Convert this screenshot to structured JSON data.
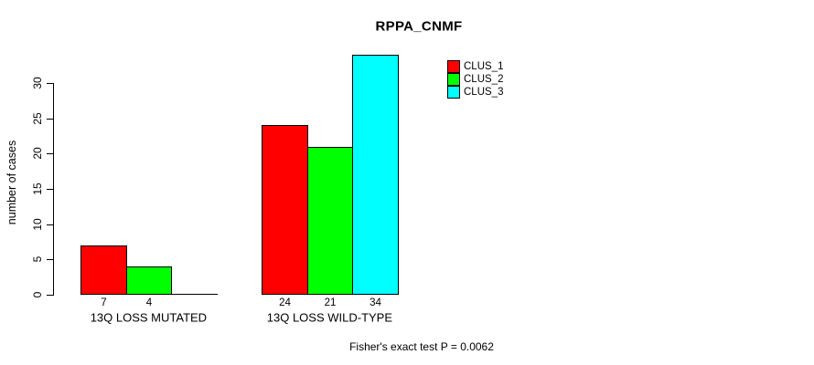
{
  "title": "RPPA_CNMF",
  "colors": {
    "background": "#ffffff",
    "axis": "#000000",
    "text": "#000000",
    "clus_1": "#ff0000",
    "clus_2": "#00ff00",
    "clus_3": "#00ffff"
  },
  "chart_data": {
    "type": "bar",
    "title": "RPPA_CNMF",
    "xlabel": "",
    "ylabel": "number of cases",
    "categories": [
      "13Q LOSS MUTATED",
      "13Q LOSS WILD-TYPE"
    ],
    "series": [
      {
        "name": "CLUS_1",
        "color": "#ff0000",
        "values": [
          7,
          24
        ]
      },
      {
        "name": "CLUS_2",
        "color": "#00ff00",
        "values": [
          4,
          21
        ]
      },
      {
        "name": "CLUS_3",
        "color": "#00ffff",
        "values": [
          0,
          34
        ]
      }
    ],
    "bar_value_labels": [
      [
        "7",
        "4",
        ""
      ],
      [
        "24",
        "21",
        "34"
      ]
    ],
    "yticks": [
      0,
      5,
      10,
      15,
      20,
      25,
      30
    ],
    "ylim": [
      0,
      34
    ],
    "grid": false,
    "legend_position": "top-right",
    "legend_entries": [
      "CLUS_1",
      "CLUS_2",
      "CLUS_3"
    ],
    "annotation": "Fisher's exact test P = 0.0062"
  }
}
